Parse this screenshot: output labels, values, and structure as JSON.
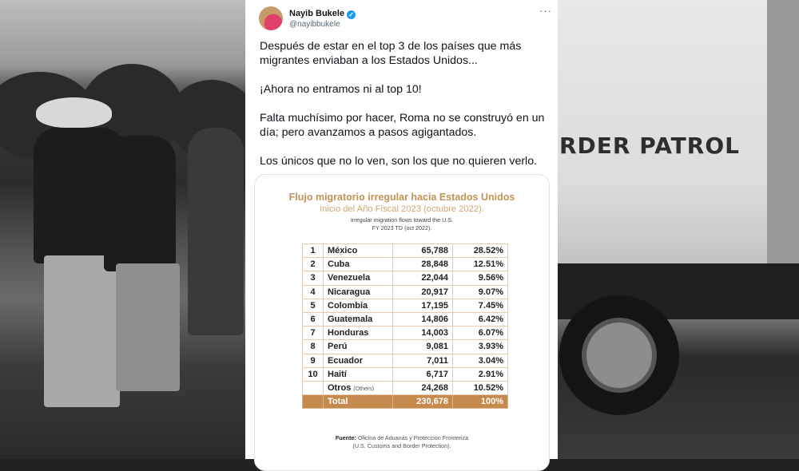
{
  "background": {
    "van_text": "RDER PATROL"
  },
  "tweet": {
    "author_name": "Nayib Bukele",
    "handle": "@nayibbukele",
    "verified_icon": "verified-badge-icon",
    "more_icon": "···",
    "paragraphs": [
      "Después de estar en el top 3 de los países que más migrantes enviaban a los Estados Unidos...",
      "¡Ahora no entramos ni al top 10!",
      "Falta muchísimo por hacer, Roma no se construyó en un día; pero avanzamos a pasos agigantados.",
      "Los únicos que no lo ven, son los que no quieren verlo."
    ]
  },
  "infographic": {
    "title": "Flujo migratorio irregular hacia Estados Unidos",
    "subtitle": "Inicio del Año Fiscal 2023 (octubre 2022).",
    "english_line1": "Irregular migration flows toward the U.S.",
    "english_line2": "FY 2023 TD (oct 2022).",
    "rows": [
      {
        "rank": "1",
        "country": "México",
        "count": "65,788",
        "pct": "28.52%"
      },
      {
        "rank": "2",
        "country": "Cuba",
        "count": "28,848",
        "pct": "12.51%"
      },
      {
        "rank": "3",
        "country": "Venezuela",
        "count": "22,044",
        "pct": "9.56%"
      },
      {
        "rank": "4",
        "country": "Nicaragua",
        "count": "20,917",
        "pct": "9.07%"
      },
      {
        "rank": "5",
        "country": "Colombia",
        "count": "17,195",
        "pct": "7.45%"
      },
      {
        "rank": "6",
        "country": "Guatemala",
        "count": "14,806",
        "pct": "6.42%"
      },
      {
        "rank": "7",
        "country": "Honduras",
        "count": "14,003",
        "pct": "6.07%"
      },
      {
        "rank": "8",
        "country": "Perú",
        "count": "9,081",
        "pct": "3.93%"
      },
      {
        "rank": "9",
        "country": "Ecuador",
        "count": "7,011",
        "pct": "3.04%"
      },
      {
        "rank": "10",
        "country": "Haití",
        "count": "6,717",
        "pct": "2.91%"
      }
    ],
    "others": {
      "label": "Otros",
      "label_en": "(Others)",
      "count": "24,268",
      "pct": "10.52%"
    },
    "total": {
      "label": "Total",
      "count": "230,678",
      "pct": "100%"
    },
    "source_label": "Fuente:",
    "source_text": "Oficina de Aduanas y Protección Fronteriza",
    "source_en": "(U.S. Customs and Border Protection).",
    "colors": {
      "accent": "#c48a4e",
      "title": "#c49256",
      "border": "#e6cdb0"
    }
  }
}
